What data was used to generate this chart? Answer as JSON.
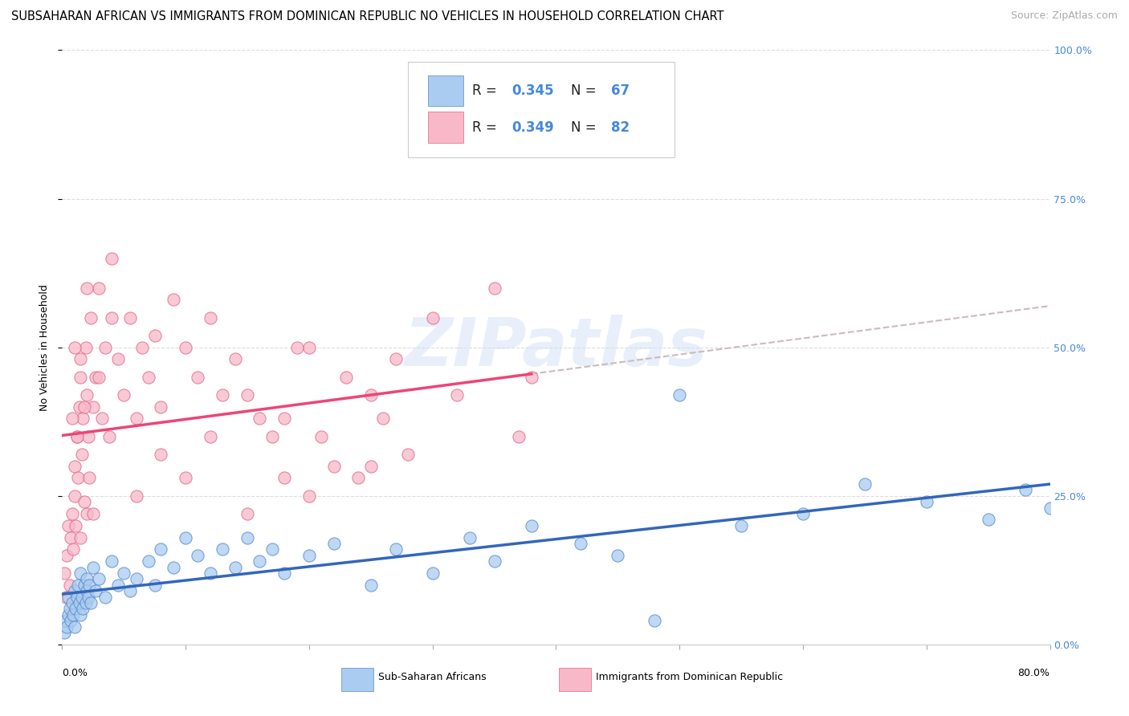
{
  "title": "SUBSAHARAN AFRICAN VS IMMIGRANTS FROM DOMINICAN REPUBLIC NO VEHICLES IN HOUSEHOLD CORRELATION CHART",
  "source": "Source: ZipAtlas.com",
  "ylabel": "No Vehicles in Household",
  "yticks": [
    "0.0%",
    "25.0%",
    "50.0%",
    "75.0%",
    "100.0%"
  ],
  "ytick_vals": [
    0,
    25,
    50,
    75,
    100
  ],
  "xmin": 0,
  "xmax": 80,
  "ymin": 0,
  "ymax": 100,
  "watermark_text": "ZIPatlas",
  "series1_label": "Sub-Saharan Africans",
  "series2_label": "Immigrants from Dominican Republic",
  "color_blue_fill": "#aaccf0",
  "color_blue_edge": "#5588cc",
  "color_pink_fill": "#f8b8c8",
  "color_pink_edge": "#dd6688",
  "color_blue_line": "#3366bb",
  "color_pink_line": "#ee4477",
  "color_dashed": "#ccbbbb",
  "color_text_blue": "#4488dd",
  "color_grid": "#dddddd",
  "series1_x": [
    0.2,
    0.3,
    0.4,
    0.5,
    0.5,
    0.6,
    0.7,
    0.8,
    0.9,
    1.0,
    1.0,
    1.1,
    1.2,
    1.3,
    1.4,
    1.5,
    1.5,
    1.6,
    1.7,
    1.8,
    1.9,
    2.0,
    2.0,
    2.1,
    2.2,
    2.3,
    2.5,
    2.7,
    3.0,
    3.5,
    4.0,
    4.5,
    5.0,
    5.5,
    6.0,
    7.0,
    7.5,
    8.0,
    9.0,
    10.0,
    11.0,
    12.0,
    13.0,
    14.0,
    15.0,
    16.0,
    17.0,
    18.0,
    20.0,
    22.0,
    25.0,
    27.0,
    30.0,
    33.0,
    35.0,
    38.0,
    42.0,
    45.0,
    50.0,
    55.0,
    60.0,
    65.0,
    70.0,
    75.0,
    78.0,
    80.0,
    48.0
  ],
  "series1_y": [
    2,
    4,
    3,
    5,
    8,
    6,
    4,
    7,
    5,
    3,
    9,
    6,
    8,
    10,
    7,
    5,
    12,
    8,
    6,
    10,
    7,
    9,
    11,
    8,
    10,
    7,
    13,
    9,
    11,
    8,
    14,
    10,
    12,
    9,
    11,
    14,
    10,
    16,
    13,
    18,
    15,
    12,
    16,
    13,
    18,
    14,
    16,
    12,
    15,
    17,
    10,
    16,
    12,
    18,
    14,
    20,
    17,
    15,
    42,
    20,
    22,
    27,
    24,
    21,
    26,
    23,
    4
  ],
  "series2_x": [
    0.2,
    0.3,
    0.4,
    0.5,
    0.6,
    0.7,
    0.8,
    0.9,
    1.0,
    1.0,
    1.1,
    1.2,
    1.3,
    1.4,
    1.5,
    1.5,
    1.6,
    1.7,
    1.8,
    1.9,
    2.0,
    2.0,
    2.1,
    2.2,
    2.3,
    2.5,
    2.7,
    3.0,
    3.2,
    3.5,
    3.8,
    4.0,
    4.5,
    5.0,
    5.5,
    6.0,
    6.5,
    7.0,
    7.5,
    8.0,
    9.0,
    10.0,
    11.0,
    12.0,
    13.0,
    14.0,
    15.0,
    16.0,
    17.0,
    18.0,
    19.0,
    20.0,
    21.0,
    22.0,
    23.0,
    24.0,
    25.0,
    26.0,
    27.0,
    28.0,
    30.0,
    32.0,
    35.0,
    37.0,
    38.0,
    25.0,
    20.0,
    18.0,
    15.0,
    12.0,
    10.0,
    8.0,
    6.0,
    4.0,
    3.0,
    2.5,
    2.0,
    1.8,
    1.5,
    1.2,
    1.0,
    0.8
  ],
  "series2_y": [
    12,
    8,
    15,
    20,
    10,
    18,
    22,
    16,
    25,
    30,
    20,
    35,
    28,
    40,
    18,
    45,
    32,
    38,
    24,
    50,
    22,
    42,
    35,
    28,
    55,
    40,
    45,
    60,
    38,
    50,
    35,
    65,
    48,
    42,
    55,
    38,
    50,
    45,
    52,
    40,
    58,
    50,
    45,
    55,
    42,
    48,
    22,
    38,
    35,
    28,
    50,
    25,
    35,
    30,
    45,
    28,
    42,
    38,
    48,
    32,
    55,
    42,
    60,
    35,
    45,
    30,
    50,
    38,
    42,
    35,
    28,
    32,
    25,
    55,
    45,
    22,
    60,
    40,
    48,
    35,
    50,
    38
  ],
  "title_fontsize": 10.5,
  "source_fontsize": 9,
  "ylabel_fontsize": 9,
  "tick_fontsize": 9,
  "legend_fontsize": 12,
  "marker_size": 120
}
